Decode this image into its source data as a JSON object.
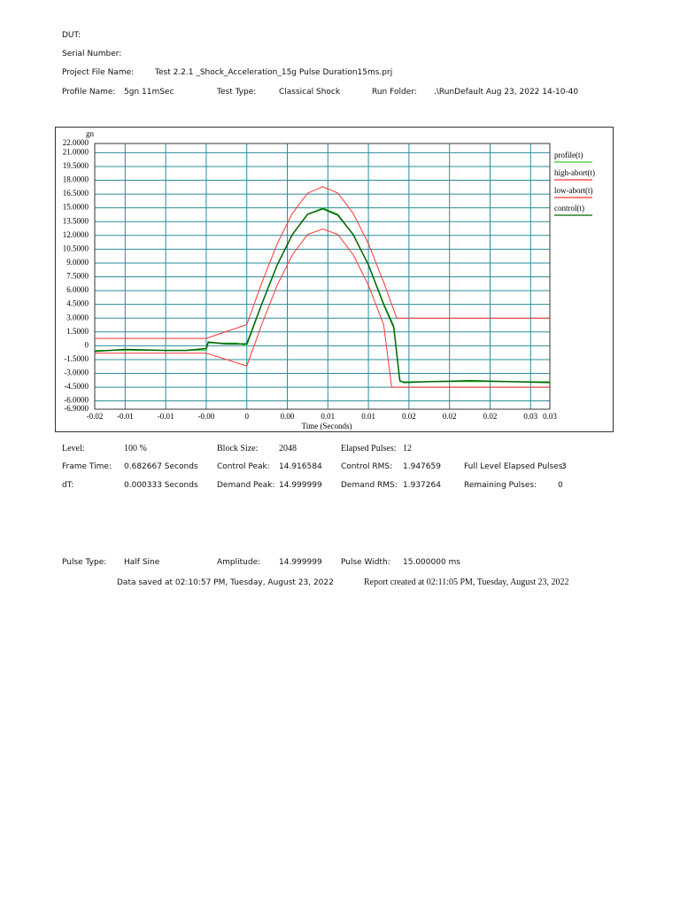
{
  "header": {
    "dut": "DUT:",
    "serial": "Serial Number:",
    "project_label": "Project File Name:",
    "project": "Test 2.2.1 _Shock_Acceleration_15g Pulse Duration15ms.prj",
    "profile_label": "Profile Name:",
    "profile": "5gn 11mSec",
    "test_type_label": "Test Type:",
    "test_type": "Classical Shock",
    "run_folder_label": "Run Folder:",
    "run_folder": ".\\RunDefault Aug 23, 2022 14-10-40"
  },
  "chart_data": {
    "type": "line",
    "y_label": "gn",
    "x_label": "Time (Seconds)",
    "xlim": [
      -0.015,
      0.0299
    ],
    "ylim": [
      -6.9,
      22
    ],
    "grid": true,
    "legend": "right",
    "xticks": [
      {
        "value": -0.015,
        "label": "-0.02"
      },
      {
        "value": -0.012,
        "label": "-0.01"
      },
      {
        "value": -0.008,
        "label": "-0.01"
      },
      {
        "value": -0.004,
        "label": "-0.00"
      },
      0,
      {
        "value": 0.004,
        "label": "0.00"
      },
      {
        "value": 0.008,
        "label": "0.01"
      },
      {
        "value": 0.012,
        "label": "0.01"
      },
      {
        "value": 0.016,
        "label": "0.02"
      },
      {
        "value": 0.02,
        "label": "0.02"
      },
      {
        "value": 0.024,
        "label": "0.02"
      },
      {
        "value": 0.028,
        "label": "0.03"
      },
      {
        "value": 0.0299,
        "label": "0.03"
      }
    ],
    "yticks": [
      {
        "value": 22,
        "label": "22.0000"
      },
      {
        "value": 21,
        "label": "21.0000"
      },
      {
        "value": 19.5,
        "label": "19.5000"
      },
      {
        "value": 18,
        "label": "18.0000"
      },
      {
        "value": 16.5,
        "label": "16.5000"
      },
      {
        "value": 15,
        "label": "15.0000"
      },
      {
        "value": 13.5,
        "label": "13.5000"
      },
      {
        "value": 12,
        "label": "12.0000"
      },
      {
        "value": 10.5,
        "label": "10.5000"
      },
      {
        "value": 9,
        "label": "9.0000"
      },
      {
        "value": 7.5,
        "label": "7.5000"
      },
      {
        "value": 6,
        "label": "6.0000"
      },
      {
        "value": 4.5,
        "label": "4.5000"
      },
      {
        "value": 3,
        "label": "3.0000"
      },
      {
        "value": 1.5,
        "label": "1.5000"
      },
      0,
      {
        "value": -1.5,
        "label": "-1.5000"
      },
      {
        "value": -3,
        "label": "-3.0000"
      },
      {
        "value": -4.5,
        "label": "-4.5000"
      },
      {
        "value": -6,
        "label": "-6.0000"
      },
      {
        "value": -6.9,
        "label": "-6.9000"
      }
    ],
    "series": [
      {
        "name": "profile(t)",
        "color": "#33cc33",
        "x": [
          -0.015,
          -0.012,
          -0.008,
          -0.004,
          -0.0038,
          -0.001,
          0,
          0.0015,
          0.003,
          0.0045,
          0.006,
          0.0075,
          0.009,
          0.0105,
          0.012,
          0.0135,
          0.0145,
          0.0151,
          0.0155,
          0.018,
          0.022,
          0.026,
          0.0299
        ],
        "values": [
          -0.5,
          -0.5,
          -0.5,
          -0.5,
          0.3,
          0.3,
          0,
          4.6,
          8.8,
          12.1,
          14.3,
          15,
          14.3,
          12.1,
          8.8,
          4.6,
          2.2,
          -3.9,
          -3.9,
          -3.9,
          -3.9,
          -3.9,
          -3.9
        ]
      },
      {
        "name": "high-abort(t)",
        "color": "#ff3333",
        "x": [
          -0.015,
          -0.004,
          0,
          0.0015,
          0.003,
          0.0045,
          0.006,
          0.0075,
          0.009,
          0.0105,
          0.012,
          0.0135,
          0.0148,
          0.0299
        ],
        "values": [
          0.8,
          0.8,
          2.3,
          6.9,
          11.1,
          14.4,
          16.6,
          17.3,
          16.6,
          14.4,
          11.1,
          6.9,
          3,
          3
        ]
      },
      {
        "name": "low-abort(t)",
        "color": "#ff3333",
        "x": [
          -0.015,
          -0.004,
          0,
          0.0015,
          0.003,
          0.0045,
          0.006,
          0.0075,
          0.009,
          0.0105,
          0.012,
          0.0135,
          0.0143,
          0.0299
        ],
        "values": [
          -0.8,
          -0.8,
          -2.2,
          2.4,
          6.6,
          9.9,
          12.1,
          12.7,
          12.1,
          9.9,
          6.6,
          2.3,
          -4.5,
          -4.5
        ]
      },
      {
        "name": "control(t)",
        "color": "#006400",
        "x": [
          -0.015,
          -0.012,
          -0.008,
          -0.006,
          -0.004,
          -0.0038,
          -0.002,
          0,
          0.0015,
          0.003,
          0.0045,
          0.006,
          0.0075,
          0.009,
          0.0105,
          0.012,
          0.0135,
          0.0145,
          0.0151,
          0.0155,
          0.018,
          0.022,
          0.026,
          0.0299
        ],
        "values": [
          -0.6,
          -0.4,
          -0.5,
          -0.5,
          -0.3,
          0.4,
          0.2,
          0.2,
          4.6,
          8.8,
          12.1,
          14.3,
          14.9,
          14.2,
          12.1,
          8.8,
          4.5,
          2,
          -3.8,
          -4,
          -3.9,
          -3.8,
          -3.9,
          -4
        ]
      }
    ]
  },
  "stats": [
    [
      [
        "Level:",
        "100 %"
      ],
      [
        "Block Size:",
        "2048"
      ],
      [
        "Elapsed Pulses:",
        "12"
      ]
    ],
    [
      [
        "Frame Time:",
        "0.682667 Seconds"
      ],
      [
        "Control Peak:",
        "14.916584"
      ],
      [
        "Control RMS:",
        "1.947659"
      ],
      [
        "Full Level Elapsed Pulses:",
        "3"
      ]
    ],
    [
      [
        "dT:",
        "0.000333 Seconds"
      ],
      [
        "Demand Peak:",
        "14.999999"
      ],
      [
        "Demand RMS:",
        "1.937264"
      ],
      [
        "Remaining Pulses:",
        "0"
      ]
    ]
  ],
  "pulse": [
    [
      "Pulse Type:",
      "Half Sine"
    ],
    [
      "Amplitude:",
      "14.999999"
    ],
    [
      "Pulse Width:",
      "15.000000 ms"
    ]
  ],
  "footer": {
    "saved": "Data saved at 02:10:57 PM, Tuesday, August 23, 2022",
    "report": "Report created at 02:11:05 PM, Tuesday, August 23, 2022"
  }
}
